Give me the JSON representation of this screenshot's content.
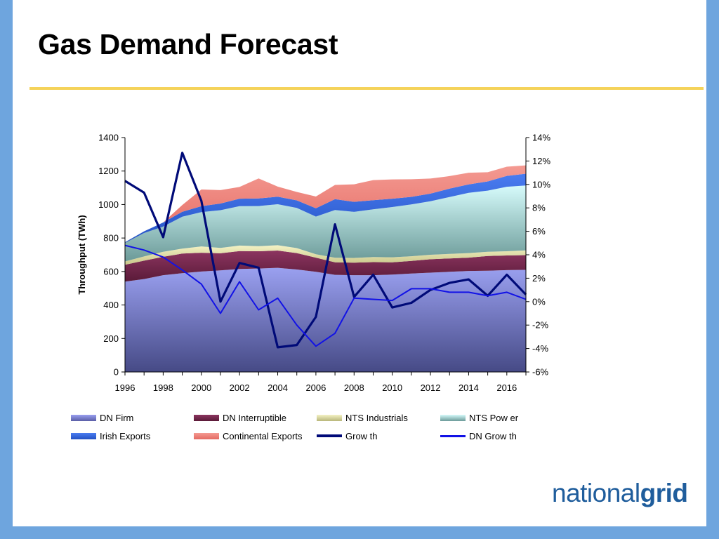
{
  "page": {
    "title": "Gas Demand Forecast"
  },
  "logo": {
    "part1": "national",
    "part2": "grid"
  },
  "colors": {
    "band": "#6ea5de",
    "rule": "#f5d35a",
    "logo": "#1f5d9c",
    "dn_firm": "#8a8fe6",
    "dn_firm_dark": "#4a4e8e",
    "dn_interruptible": "#7a2a50",
    "nts_industrials": "#e6e4a6",
    "nts_power": "#c9f6f6",
    "nts_power_dark": "#6a9c9a",
    "irish_exports": "#3366e0",
    "continental_exports": "#f08078",
    "growth": "#000a78",
    "dn_growth": "#1212e6"
  },
  "chart_data": {
    "type": "area",
    "x": [
      1996,
      1997,
      1998,
      1999,
      2000,
      2001,
      2002,
      2003,
      2004,
      2005,
      2006,
      2007,
      2008,
      2009,
      2010,
      2011,
      2012,
      2013,
      2014,
      2015,
      2016,
      2017
    ],
    "xticks": [
      "1996",
      "1998",
      "2000",
      "2002",
      "2004",
      "2006",
      "2008",
      "2010",
      "2012",
      "2014",
      "2016"
    ],
    "ylabel": "Throughput (TWh)",
    "ylim": [
      0,
      1400
    ],
    "yticks": [
      "0",
      "200",
      "400",
      "600",
      "800",
      "1000",
      "1200",
      "1400"
    ],
    "y2lim": [
      -6,
      14
    ],
    "y2ticks": [
      "-6%",
      "-4%",
      "-2%",
      "0%",
      "2%",
      "4%",
      "6%",
      "8%",
      "10%",
      "12%",
      "14%"
    ],
    "stacked": true,
    "series": [
      {
        "name": "DN Firm",
        "kind": "area",
        "values": [
          540,
          555,
          578,
          590,
          600,
          607,
          615,
          618,
          622,
          612,
          598,
          580,
          578,
          578,
          582,
          588,
          593,
          598,
          603,
          605,
          608,
          610
        ]
      },
      {
        "name": "DN Interruptible",
        "kind": "area",
        "values": [
          100,
          110,
          110,
          117,
          112,
          102,
          107,
          103,
          103,
          98,
          85,
          75,
          75,
          78,
          73,
          75,
          80,
          80,
          80,
          88,
          88,
          88
        ]
      },
      {
        "name": "NTS Industrials",
        "kind": "area",
        "values": [
          20,
          25,
          30,
          30,
          38,
          32,
          33,
          30,
          32,
          30,
          20,
          27,
          28,
          30,
          30,
          28,
          27,
          27,
          27,
          25,
          25,
          28
        ]
      },
      {
        "name": "NTS Power",
        "kind": "area",
        "values": [
          110,
          140,
          150,
          190,
          205,
          225,
          235,
          240,
          245,
          240,
          225,
          285,
          275,
          285,
          300,
          310,
          320,
          340,
          360,
          365,
          385,
          388
        ]
      },
      {
        "name": "Irish Exports",
        "kind": "area",
        "values": [
          5,
          10,
          25,
          30,
          35,
          40,
          45,
          45,
          45,
          45,
          50,
          65,
          60,
          55,
          50,
          45,
          45,
          50,
          50,
          55,
          65,
          70
        ]
      },
      {
        "name": "Continental Exports",
        "kind": "area",
        "values": [
          0,
          0,
          0,
          40,
          100,
          80,
          70,
          120,
          60,
          50,
          70,
          85,
          105,
          120,
          115,
          105,
          90,
          75,
          70,
          55,
          55,
          50
        ]
      },
      {
        "name": "Grow th",
        "kind": "line",
        "axis": "right",
        "values": [
          10.3,
          9.3,
          5.5,
          12.7,
          8.6,
          0,
          3.3,
          2.9,
          -3.9,
          -3.7,
          -1.3,
          6.6,
          0.4,
          2.3,
          -0.5,
          -0.1,
          1.0,
          1.6,
          1.9,
          0.5,
          2.3,
          0.6
        ]
      },
      {
        "name": "DN Grow th",
        "kind": "line",
        "axis": "right",
        "values": [
          4.8,
          4.4,
          3.8,
          2.7,
          1.5,
          -1.0,
          1.7,
          -0.7,
          0.3,
          -2.0,
          -3.8,
          -2.7,
          0.3,
          0.2,
          0.1,
          1.1,
          1.1,
          0.8,
          0.8,
          0.5,
          0.8,
          0.2
        ]
      }
    ],
    "legend": [
      [
        "DN Firm",
        "DN Interruptible",
        "NTS Industrials",
        "NTS Pow er"
      ],
      [
        "Irish Exports",
        "Continental Exports",
        "Grow th",
        "DN Grow th"
      ]
    ],
    "legend_position": "bottom"
  }
}
